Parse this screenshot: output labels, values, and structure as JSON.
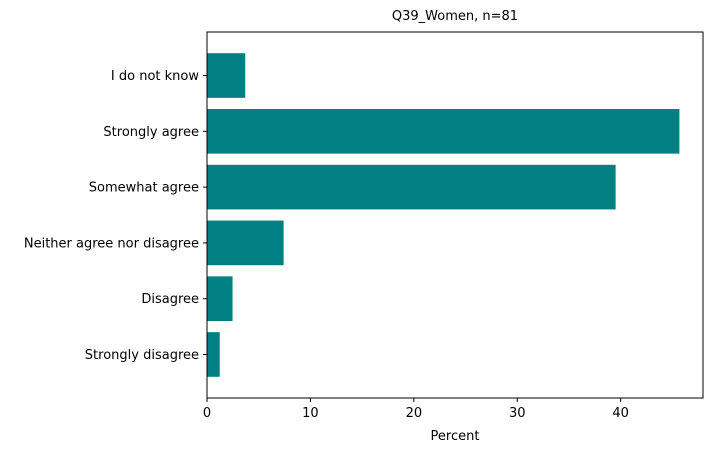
{
  "chart_data": {
    "type": "bar",
    "orientation": "horizontal",
    "title": "Q39_Women, n=81",
    "xlabel": "Percent",
    "ylabel": "",
    "categories": [
      "Strongly disagree",
      "Disagree",
      "Neither agree nor disagree",
      "Somewhat agree",
      "Strongly agree",
      "I do not know"
    ],
    "values": [
      1.23,
      2.47,
      7.41,
      39.51,
      45.68,
      3.7
    ],
    "xlim": [
      0,
      47.96
    ],
    "xticks": [
      0,
      10,
      20,
      30,
      40
    ],
    "grid": false,
    "bar_color": "#008080"
  }
}
